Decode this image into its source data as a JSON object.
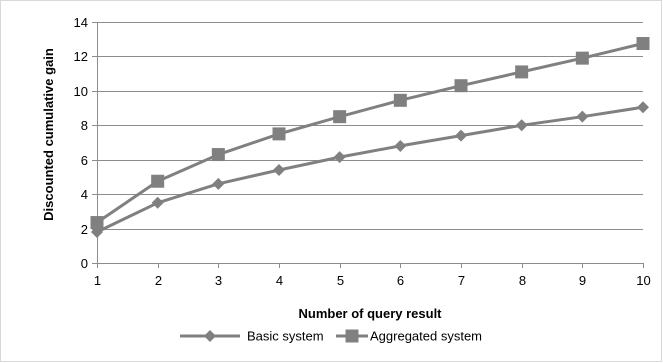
{
  "chart_data": {
    "type": "line",
    "title": "",
    "xlabel": "Number of query result",
    "ylabel": "Discounted cumulative gain",
    "x": [
      1,
      2,
      3,
      4,
      5,
      6,
      7,
      8,
      9,
      10
    ],
    "xticks": [
      "1",
      "2",
      "3",
      "4",
      "5",
      "6",
      "7",
      "8",
      "9",
      "10"
    ],
    "ylim": [
      0,
      14
    ],
    "yticks": [
      "0",
      "2",
      "4",
      "6",
      "8",
      "10",
      "12",
      "14"
    ],
    "grid": true,
    "legend": "bottom",
    "series": [
      {
        "name": "Basic system",
        "marker": "diamond",
        "color": "#808080",
        "values": [
          1.8,
          3.5,
          4.6,
          5.4,
          6.15,
          6.8,
          7.4,
          8.0,
          8.5,
          9.05
        ]
      },
      {
        "name": "Aggregated system",
        "marker": "square",
        "color": "#808080",
        "values": [
          2.35,
          4.75,
          6.3,
          7.5,
          8.5,
          9.45,
          10.3,
          11.1,
          11.9,
          12.75
        ]
      }
    ]
  }
}
